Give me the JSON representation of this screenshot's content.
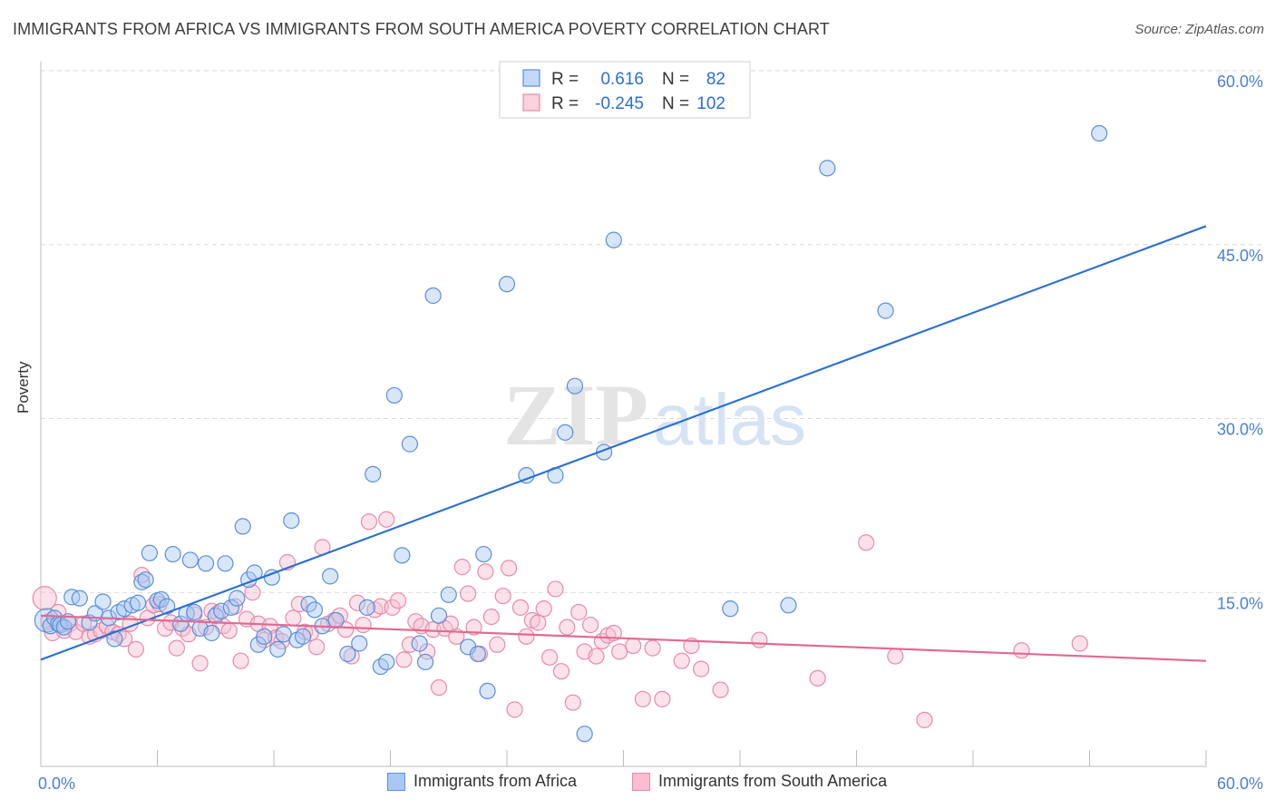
{
  "header": {
    "title": "IMMIGRANTS FROM AFRICA VS IMMIGRANTS FROM SOUTH AMERICA POVERTY CORRELATION CHART",
    "source": "Source: ZipAtlas.com"
  },
  "watermark": {
    "zip": "ZIP",
    "atlas": "atlas"
  },
  "colors": {
    "africa_fill": "#a9c7f2",
    "africa_stroke": "#5b8fdb",
    "africa_line": "#2a6fd1",
    "sa_fill": "#f7bfd0",
    "sa_stroke": "#e88aa8",
    "sa_line": "#e06a93",
    "grid": "#d9d9d9",
    "tick_text": "#4a7fd4"
  },
  "chart_data": {
    "type": "scatter",
    "title": "IMMIGRANTS FROM AFRICA VS IMMIGRANTS FROM SOUTH AMERICA POVERTY CORRELATION CHART",
    "xlabel": "",
    "ylabel": "Poverty",
    "xlim": [
      0,
      60
    ],
    "ylim": [
      0,
      60
    ],
    "x_tick_labels": [
      {
        "value": 0,
        "label": "0.0%"
      },
      {
        "value": 60,
        "label": "60.0%"
      }
    ],
    "y_tick_labels": [
      {
        "value": 15,
        "label": "15.0%"
      },
      {
        "value": 30,
        "label": "30.0%"
      },
      {
        "value": 45,
        "label": "45.0%"
      },
      {
        "value": 60,
        "label": "60.0%"
      }
    ],
    "grid": "horizontal dashed",
    "legend_position": "top-center",
    "legend": [
      {
        "r_label": "R =",
        "r_value": "0.616",
        "n_label": "N =",
        "n_value": "82"
      },
      {
        "r_label": "R =",
        "r_value": "-0.245",
        "n_label": "N =",
        "n_value": "102"
      }
    ],
    "series": [
      {
        "name": "Immigrants from Africa",
        "trend": {
          "x": [
            0,
            60
          ],
          "y": [
            9.2,
            46.6
          ]
        },
        "points": [
          [
            0.3,
            12.6
          ],
          [
            0.5,
            12.1
          ],
          [
            0.7,
            12.8
          ],
          [
            0.9,
            12.3
          ],
          [
            1.0,
            12.2
          ],
          [
            1.2,
            12.0
          ],
          [
            1.4,
            12.5
          ],
          [
            1.6,
            14.6
          ],
          [
            2.0,
            14.5
          ],
          [
            2.5,
            12.4
          ],
          [
            2.8,
            13.2
          ],
          [
            3.2,
            14.2
          ],
          [
            3.5,
            12.8
          ],
          [
            3.8,
            11.0
          ],
          [
            4.0,
            13.3
          ],
          [
            4.3,
            13.6
          ],
          [
            4.7,
            13.9
          ],
          [
            5.0,
            14.1
          ],
          [
            5.2,
            15.9
          ],
          [
            5.4,
            16.1
          ],
          [
            5.6,
            18.4
          ],
          [
            6.0,
            14.3
          ],
          [
            6.2,
            14.4
          ],
          [
            6.5,
            13.8
          ],
          [
            6.8,
            18.3
          ],
          [
            7.2,
            12.3
          ],
          [
            7.5,
            13.2
          ],
          [
            7.7,
            17.8
          ],
          [
            7.9,
            13.3
          ],
          [
            8.2,
            11.9
          ],
          [
            8.5,
            17.5
          ],
          [
            8.8,
            11.5
          ],
          [
            9.0,
            13.0
          ],
          [
            9.3,
            13.4
          ],
          [
            9.5,
            17.5
          ],
          [
            9.8,
            13.7
          ],
          [
            10.1,
            14.5
          ],
          [
            10.4,
            20.7
          ],
          [
            10.7,
            16.1
          ],
          [
            11.0,
            16.7
          ],
          [
            11.2,
            10.5
          ],
          [
            11.5,
            11.2
          ],
          [
            11.9,
            16.3
          ],
          [
            12.2,
            10.1
          ],
          [
            12.5,
            11.4
          ],
          [
            12.9,
            21.2
          ],
          [
            13.2,
            10.9
          ],
          [
            13.5,
            11.2
          ],
          [
            13.8,
            14.0
          ],
          [
            14.1,
            13.5
          ],
          [
            14.5,
            12.1
          ],
          [
            14.9,
            16.4
          ],
          [
            15.2,
            12.6
          ],
          [
            15.8,
            9.7
          ],
          [
            16.4,
            10.6
          ],
          [
            16.8,
            13.7
          ],
          [
            17.1,
            25.2
          ],
          [
            17.5,
            8.6
          ],
          [
            17.8,
            9.0
          ],
          [
            18.2,
            32.0
          ],
          [
            18.6,
            18.2
          ],
          [
            19.0,
            27.8
          ],
          [
            19.5,
            10.6
          ],
          [
            19.8,
            9.0
          ],
          [
            20.2,
            40.6
          ],
          [
            20.5,
            13.0
          ],
          [
            21.0,
            14.8
          ],
          [
            22.0,
            10.3
          ],
          [
            22.5,
            9.7
          ],
          [
            22.8,
            18.3
          ],
          [
            23.0,
            6.5
          ],
          [
            24.0,
            41.6
          ],
          [
            25.0,
            25.1
          ],
          [
            26.5,
            25.1
          ],
          [
            27.0,
            28.8
          ],
          [
            27.5,
            32.8
          ],
          [
            28.0,
            2.8
          ],
          [
            29.0,
            27.1
          ],
          [
            29.5,
            45.4
          ],
          [
            35.5,
            13.6
          ],
          [
            38.5,
            13.9
          ],
          [
            40.5,
            51.6
          ],
          [
            43.5,
            39.3
          ],
          [
            54.5,
            54.6
          ]
        ]
      },
      {
        "name": "Immigrants from South America",
        "trend": {
          "x": [
            0,
            60
          ],
          "y": [
            13.0,
            9.1
          ]
        },
        "points": [
          [
            0.2,
            14.5
          ],
          [
            0.4,
            12.5
          ],
          [
            0.6,
            11.5
          ],
          [
            0.9,
            13.3
          ],
          [
            1.2,
            11.7
          ],
          [
            1.5,
            12.3
          ],
          [
            1.8,
            11.6
          ],
          [
            2.2,
            12.3
          ],
          [
            2.5,
            11.2
          ],
          [
            2.8,
            11.4
          ],
          [
            3.1,
            11.7
          ],
          [
            3.4,
            12.1
          ],
          [
            3.7,
            11.6
          ],
          [
            4.0,
            11.4
          ],
          [
            4.3,
            11.0
          ],
          [
            4.6,
            12.3
          ],
          [
            4.9,
            10.1
          ],
          [
            5.2,
            16.5
          ],
          [
            5.5,
            12.8
          ],
          [
            5.8,
            13.9
          ],
          [
            6.1,
            14.0
          ],
          [
            6.4,
            11.9
          ],
          [
            6.7,
            12.4
          ],
          [
            7.0,
            10.2
          ],
          [
            7.3,
            11.9
          ],
          [
            7.6,
            11.4
          ],
          [
            7.9,
            13.1
          ],
          [
            8.2,
            8.9
          ],
          [
            8.5,
            12.0
          ],
          [
            8.8,
            13.4
          ],
          [
            9.1,
            13.2
          ],
          [
            9.4,
            12.1
          ],
          [
            9.7,
            11.7
          ],
          [
            10.0,
            13.8
          ],
          [
            10.3,
            9.1
          ],
          [
            10.6,
            12.7
          ],
          [
            10.9,
            15.0
          ],
          [
            11.2,
            12.3
          ],
          [
            11.5,
            10.9
          ],
          [
            11.8,
            12.1
          ],
          [
            12.1,
            11.1
          ],
          [
            12.4,
            10.8
          ],
          [
            12.7,
            17.6
          ],
          [
            13.0,
            12.8
          ],
          [
            13.3,
            14.0
          ],
          [
            13.6,
            11.6
          ],
          [
            13.9,
            11.5
          ],
          [
            14.2,
            10.3
          ],
          [
            14.5,
            18.9
          ],
          [
            14.8,
            12.3
          ],
          [
            15.1,
            12.6
          ],
          [
            15.4,
            13.0
          ],
          [
            15.7,
            11.8
          ],
          [
            16.0,
            9.5
          ],
          [
            16.3,
            14.1
          ],
          [
            16.6,
            12.2
          ],
          [
            16.9,
            21.1
          ],
          [
            17.2,
            13.5
          ],
          [
            17.5,
            13.8
          ],
          [
            17.8,
            21.3
          ],
          [
            18.1,
            13.7
          ],
          [
            18.4,
            14.3
          ],
          [
            18.7,
            9.2
          ],
          [
            19.0,
            10.5
          ],
          [
            19.3,
            12.5
          ],
          [
            19.6,
            12.1
          ],
          [
            19.9,
            9.9
          ],
          [
            20.2,
            11.8
          ],
          [
            20.5,
            6.8
          ],
          [
            20.8,
            11.9
          ],
          [
            21.1,
            12.3
          ],
          [
            21.4,
            11.2
          ],
          [
            21.7,
            17.2
          ],
          [
            22.0,
            14.9
          ],
          [
            22.3,
            12.0
          ],
          [
            22.6,
            9.7
          ],
          [
            22.9,
            16.8
          ],
          [
            23.2,
            12.9
          ],
          [
            23.5,
            10.5
          ],
          [
            23.8,
            14.7
          ],
          [
            24.1,
            17.1
          ],
          [
            24.4,
            4.9
          ],
          [
            24.7,
            13.7
          ],
          [
            25.0,
            11.2
          ],
          [
            25.3,
            12.6
          ],
          [
            25.6,
            12.4
          ],
          [
            25.9,
            13.6
          ],
          [
            26.2,
            9.4
          ],
          [
            26.5,
            15.3
          ],
          [
            26.8,
            8.2
          ],
          [
            27.1,
            12.0
          ],
          [
            27.4,
            5.5
          ],
          [
            27.7,
            13.3
          ],
          [
            28.0,
            9.9
          ],
          [
            28.3,
            12.2
          ],
          [
            28.6,
            9.5
          ],
          [
            28.9,
            10.8
          ],
          [
            29.2,
            11.3
          ],
          [
            29.5,
            11.5
          ],
          [
            29.8,
            9.9
          ],
          [
            30.5,
            10.4
          ],
          [
            31.0,
            5.8
          ],
          [
            31.5,
            10.2
          ],
          [
            32.0,
            5.8
          ],
          [
            33.0,
            9.1
          ],
          [
            33.5,
            10.4
          ],
          [
            34.0,
            8.4
          ],
          [
            35.0,
            6.6
          ],
          [
            37.0,
            10.9
          ],
          [
            40.0,
            7.6
          ],
          [
            42.5,
            19.3
          ],
          [
            44.0,
            9.5
          ],
          [
            45.5,
            4.0
          ],
          [
            50.5,
            10.0
          ],
          [
            53.5,
            10.6
          ]
        ]
      }
    ]
  },
  "legend_bottom": [
    {
      "label": "Immigrants from Africa"
    },
    {
      "label": "Immigrants from South America"
    }
  ]
}
